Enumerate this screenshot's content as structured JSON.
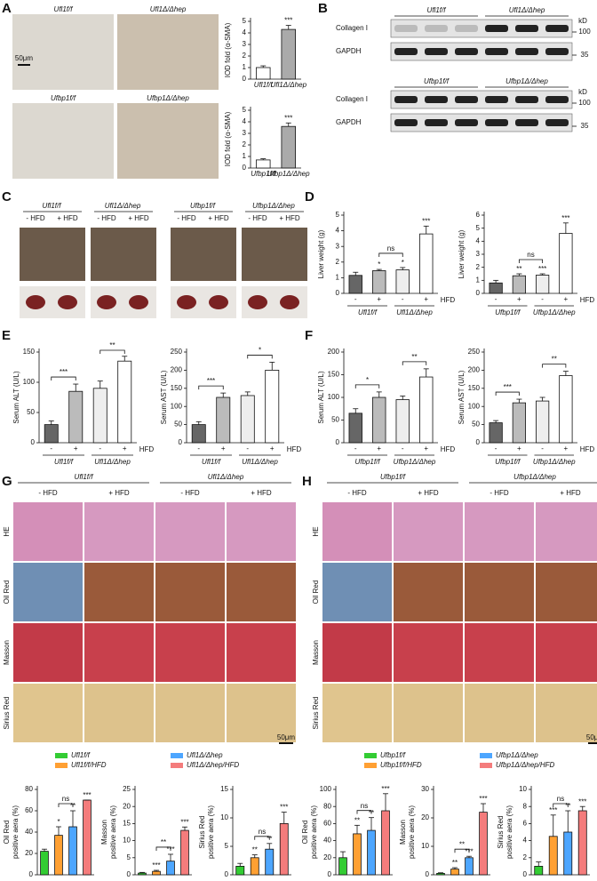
{
  "panel_labels": [
    "A",
    "B",
    "C",
    "D",
    "E",
    "F",
    "G",
    "H"
  ],
  "A": {
    "images": [
      [
        "Ufl1f/f",
        "Ufl1Δ/Δhep"
      ],
      [
        "Ufbp1f/f",
        "Ufbp1Δ/Δhep"
      ]
    ],
    "scale_bar": "50μm"
  },
  "B": {
    "blots": [
      {
        "groups": [
          "Ufl1f/f",
          "Ufl1Δ/Δhep"
        ]
      },
      {
        "groups": [
          "Ufbp1f/f",
          "Ufbp1Δ/Δhep"
        ]
      }
    ],
    "proteins": [
      "Collagen I",
      "GAPDH"
    ],
    "unit": "kD",
    "markers": [
      "100",
      "35"
    ]
  },
  "C": {
    "groups": [
      "Ufl1f/f",
      "Ufl1Δ/Δhep",
      "Ufbp1f/f",
      "Ufbp1Δ/Δhep"
    ],
    "conditions": [
      "- HFD",
      "+ HFD"
    ]
  },
  "G": {
    "groups": [
      "Ufl1f/f",
      "Ufl1Δ/Δhep"
    ],
    "conditions": [
      "- HFD",
      "+ HFD"
    ],
    "stains": [
      "HE",
      "Oil Red",
      "Masson",
      "Sirius Red"
    ],
    "scale_bar": "50μm",
    "legend": [
      {
        "name": "Ufl1f/f",
        "color": "#33cc33"
      },
      {
        "name": "Ufl1Δ/Δhep",
        "color": "#4da6ff"
      },
      {
        "name": "Ufl1f/f/HFD",
        "color": "#ffa033"
      },
      {
        "name": "Ufl1Δ/Δhep/HFD",
        "color": "#f47c7c"
      }
    ]
  },
  "H": {
    "groups": [
      "Ufbp1f/f",
      "Ufbp1Δ/Δhep"
    ],
    "conditions": [
      "- HFD",
      "+ HFD"
    ],
    "stains": [
      "HE",
      "Oil Red",
      "Masson",
      "Sirius Red"
    ],
    "scale_bar": "50μm",
    "legend": [
      {
        "name": "Ufbp1f/f",
        "color": "#33cc33"
      },
      {
        "name": "Ufbp1Δ/Δhep",
        "color": "#4da6ff"
      },
      {
        "name": "Ufbp1f/f/HFD",
        "color": "#ffa033"
      },
      {
        "name": "Ufbp1Δ/Δhep/HFD",
        "color": "#f47c7c"
      }
    ]
  },
  "chart_data": [
    {
      "type": "bar",
      "ylabel": "IOD fold (α-SMA)",
      "categories": [
        "Ufl1f/f",
        "Ufl1Δ/Δhep"
      ],
      "values": [
        1,
        4.3
      ],
      "errors": [
        0.15,
        0.35
      ],
      "colors": [
        "#ffffff",
        "#aaaaaa"
      ],
      "ylim": [
        0,
        5
      ],
      "yticks": [
        0,
        1,
        2,
        3,
        4,
        5
      ],
      "annotations": [
        {
          "text": "***",
          "bars": [
            1
          ]
        }
      ]
    },
    {
      "type": "bar",
      "ylabel": "IOD fold (α-SMA)",
      "categories": [
        "Ufbp1f/f",
        "Ufbp1Δ/Δhep"
      ],
      "values": [
        0.7,
        3.6
      ],
      "errors": [
        0.1,
        0.3
      ],
      "colors": [
        "#ffffff",
        "#aaaaaa"
      ],
      "ylim": [
        0,
        5
      ],
      "yticks": [
        0,
        1,
        2,
        3,
        4,
        5
      ],
      "annotations": [
        {
          "text": "***",
          "bars": [
            1
          ]
        }
      ]
    },
    {
      "type": "bar",
      "ylabel": "Liver weight (g)",
      "categories": [
        "-",
        "+",
        "-",
        "+"
      ],
      "groups": [
        "Ufl1f/f",
        "Ufl1Δ/Δhep"
      ],
      "factor": "HFD",
      "values": [
        1.15,
        1.45,
        1.5,
        3.8
      ],
      "errors": [
        0.2,
        0.08,
        0.15,
        0.5
      ],
      "colors": [
        "#666666",
        "#bbbbbb",
        "#eeeeee",
        "#ffffff"
      ],
      "ylim": [
        0,
        5
      ],
      "yticks": [
        0,
        1,
        2,
        3,
        4,
        5
      ],
      "annotations": [
        {
          "text": "*",
          "bars": [
            1
          ]
        },
        {
          "text": "*",
          "bars": [
            2
          ]
        },
        {
          "text": "***",
          "bars": [
            3
          ]
        },
        {
          "text": "ns",
          "bars": [
            1,
            2
          ]
        }
      ]
    },
    {
      "type": "bar",
      "ylabel": "Liver weight (g)",
      "categories": [
        "-",
        "+",
        "-",
        "+"
      ],
      "groups": [
        "Ufbp1f/f",
        "Ufbp1Δ/Δhep"
      ],
      "factor": "HFD",
      "values": [
        0.8,
        1.35,
        1.4,
        4.6
      ],
      "errors": [
        0.2,
        0.15,
        0.1,
        0.8
      ],
      "colors": [
        "#666666",
        "#bbbbbb",
        "#eeeeee",
        "#ffffff"
      ],
      "ylim": [
        0,
        6
      ],
      "yticks": [
        0,
        1,
        2,
        3,
        4,
        5,
        6
      ],
      "annotations": [
        {
          "text": "**",
          "bars": [
            1
          ]
        },
        {
          "text": "***",
          "bars": [
            2
          ]
        },
        {
          "text": "***",
          "bars": [
            3
          ]
        },
        {
          "text": "ns",
          "bars": [
            1,
            2
          ]
        }
      ]
    },
    {
      "type": "bar",
      "ylabel": "Serum ALT (U/L)",
      "categories": [
        "-",
        "+",
        "-",
        "+"
      ],
      "groups": [
        "Ufl1f/f",
        "Ufl1Δ/Δhep"
      ],
      "factor": "HFD",
      "values": [
        30,
        85,
        90,
        135
      ],
      "errors": [
        6,
        12,
        12,
        8
      ],
      "colors": [
        "#666666",
        "#bbbbbb",
        "#eeeeee",
        "#ffffff"
      ],
      "ylim": [
        0,
        150
      ],
      "yticks": [
        0,
        50,
        100,
        150
      ],
      "annotations": [
        {
          "text": "***",
          "bars": [
            0,
            1
          ]
        },
        {
          "text": "**",
          "bars": [
            2,
            3
          ]
        }
      ]
    },
    {
      "type": "bar",
      "ylabel": "Serum AST (U/L)",
      "categories": [
        "-",
        "+",
        "-",
        "+"
      ],
      "groups": [
        "Ufl1f/f",
        "Ufl1Δ/Δhep"
      ],
      "factor": "HFD",
      "values": [
        50,
        125,
        130,
        200
      ],
      "errors": [
        8,
        12,
        10,
        22
      ],
      "colors": [
        "#666666",
        "#bbbbbb",
        "#eeeeee",
        "#ffffff"
      ],
      "ylim": [
        0,
        250
      ],
      "yticks": [
        0,
        50,
        100,
        150,
        200,
        250
      ],
      "annotations": [
        {
          "text": "***",
          "bars": [
            0,
            1
          ]
        },
        {
          "text": "*",
          "bars": [
            2,
            3
          ]
        }
      ]
    },
    {
      "type": "bar",
      "ylabel": "Serum ALT (U/L)",
      "categories": [
        "-",
        "+",
        "-",
        "+"
      ],
      "groups": [
        "Ufbp1f/f",
        "Ufbp1Δ/Δhep"
      ],
      "factor": "HFD",
      "values": [
        65,
        100,
        95,
        145
      ],
      "errors": [
        10,
        12,
        8,
        18
      ],
      "colors": [
        "#666666",
        "#bbbbbb",
        "#eeeeee",
        "#ffffff"
      ],
      "ylim": [
        0,
        200
      ],
      "yticks": [
        0,
        50,
        100,
        150,
        200
      ],
      "annotations": [
        {
          "text": "*",
          "bars": [
            0,
            1
          ]
        },
        {
          "text": "**",
          "bars": [
            2,
            3
          ]
        }
      ]
    },
    {
      "type": "bar",
      "ylabel": "Serum AST (U/L)",
      "categories": [
        "-",
        "+",
        "-",
        "+"
      ],
      "groups": [
        "Ufbp1f/f",
        "Ufbp1Δ/Δhep"
      ],
      "factor": "HFD",
      "values": [
        55,
        110,
        115,
        185
      ],
      "errors": [
        6,
        10,
        10,
        12
      ],
      "colors": [
        "#666666",
        "#bbbbbb",
        "#eeeeee",
        "#ffffff"
      ],
      "ylim": [
        0,
        250
      ],
      "yticks": [
        0,
        50,
        100,
        150,
        200,
        250
      ],
      "annotations": [
        {
          "text": "***",
          "bars": [
            0,
            1
          ]
        },
        {
          "text": "**",
          "bars": [
            2,
            3
          ]
        }
      ]
    },
    {
      "type": "bar",
      "ylabel": [
        "Oil Red",
        "positive aera (%)"
      ],
      "values": [
        22,
        37,
        45,
        70
      ],
      "errors": [
        2,
        8,
        15,
        0
      ],
      "colors": [
        "#33cc33",
        "#ffa033",
        "#4da6ff",
        "#f47c7c"
      ],
      "ylim": [
        0,
        80
      ],
      "yticks": [
        0,
        20,
        40,
        60,
        80
      ],
      "annotations": [
        {
          "text": "*",
          "bars": [
            1
          ]
        },
        {
          "text": "**",
          "bars": [
            2
          ]
        },
        {
          "text": "***",
          "bars": [
            3
          ]
        },
        {
          "text": "ns",
          "bars": [
            1,
            2
          ]
        }
      ]
    },
    {
      "type": "bar",
      "ylabel": [
        "Masson",
        "positive aera (%)"
      ],
      "values": [
        0.5,
        1,
        4,
        13
      ],
      "errors": [
        0.2,
        0.3,
        2,
        1
      ],
      "colors": [
        "#33cc33",
        "#ffa033",
        "#4da6ff",
        "#f47c7c"
      ],
      "ylim": [
        0,
        25
      ],
      "yticks": [
        0,
        5,
        10,
        15,
        20,
        25
      ],
      "annotations": [
        {
          "text": "***",
          "bars": [
            1
          ]
        },
        {
          "text": "***",
          "bars": [
            2
          ]
        },
        {
          "text": "***",
          "bars": [
            3
          ]
        },
        {
          "text": "**",
          "bars": [
            1,
            2
          ]
        }
      ]
    },
    {
      "type": "bar",
      "ylabel": [
        "Sirius Red",
        "positive aera (%)"
      ],
      "values": [
        1.5,
        3,
        4.5,
        9
      ],
      "errors": [
        0.5,
        0.5,
        1,
        2
      ],
      "colors": [
        "#33cc33",
        "#ffa033",
        "#4da6ff",
        "#f47c7c"
      ],
      "ylim": [
        0,
        15
      ],
      "yticks": [
        0,
        5,
        10,
        15
      ],
      "annotations": [
        {
          "text": "**",
          "bars": [
            1
          ]
        },
        {
          "text": "**",
          "bars": [
            2
          ]
        },
        {
          "text": "***",
          "bars": [
            3
          ]
        },
        {
          "text": "ns",
          "bars": [
            1,
            2
          ]
        }
      ]
    },
    {
      "type": "bar",
      "ylabel": [
        "Oil Red",
        "positive aera (%)"
      ],
      "values": [
        20,
        48,
        52,
        75
      ],
      "errors": [
        7,
        10,
        15,
        20
      ],
      "colors": [
        "#33cc33",
        "#ffa033",
        "#4da6ff",
        "#f47c7c"
      ],
      "ylim": [
        0,
        100
      ],
      "yticks": [
        0,
        20,
        40,
        60,
        80,
        100
      ],
      "annotations": [
        {
          "text": "**",
          "bars": [
            1
          ]
        },
        {
          "text": "**",
          "bars": [
            2
          ]
        },
        {
          "text": "***",
          "bars": [
            3
          ]
        },
        {
          "text": "ns",
          "bars": [
            1,
            2
          ]
        }
      ]
    },
    {
      "type": "bar",
      "ylabel": [
        "Masson",
        "positive aera (%)"
      ],
      "values": [
        0.5,
        2,
        6,
        22
      ],
      "errors": [
        0.2,
        0.5,
        0.5,
        3
      ],
      "colors": [
        "#33cc33",
        "#ffa033",
        "#4da6ff",
        "#f47c7c"
      ],
      "ylim": [
        0,
        30
      ],
      "yticks": [
        0,
        10,
        20,
        30
      ],
      "annotations": [
        {
          "text": "**",
          "bars": [
            1
          ]
        },
        {
          "text": "***",
          "bars": [
            2
          ]
        },
        {
          "text": "***",
          "bars": [
            3
          ]
        },
        {
          "text": "**",
          "bars": [
            1,
            2
          ]
        }
      ]
    },
    {
      "type": "bar",
      "ylabel": [
        "Sirius Red",
        "positive aera (%)"
      ],
      "values": [
        1,
        4.5,
        5,
        7.5
      ],
      "errors": [
        0.5,
        2.5,
        2.5,
        0.5
      ],
      "colors": [
        "#33cc33",
        "#ffa033",
        "#4da6ff",
        "#f47c7c"
      ],
      "ylim": [
        0,
        10
      ],
      "yticks": [
        0,
        2,
        4,
        6,
        8,
        10
      ],
      "annotations": [
        {
          "text": "***",
          "bars": [
            1
          ]
        },
        {
          "text": "**",
          "bars": [
            2
          ]
        },
        {
          "text": "***",
          "bars": [
            3
          ]
        },
        {
          "text": "ns",
          "bars": [
            1,
            2
          ]
        }
      ]
    }
  ]
}
